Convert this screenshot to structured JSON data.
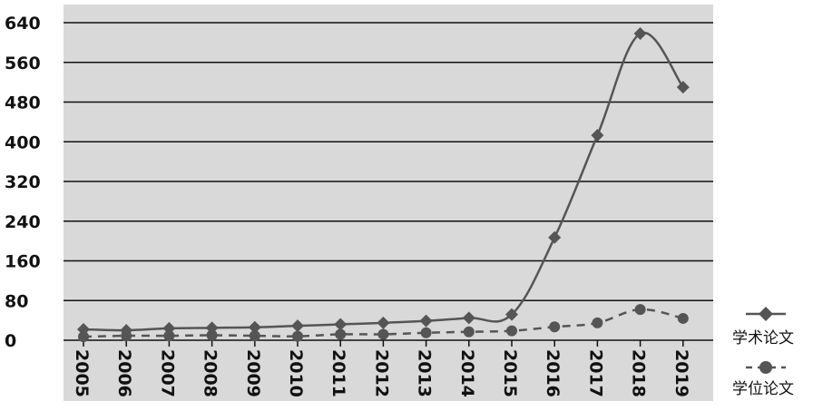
{
  "chart_data": {
    "type": "line",
    "title": "",
    "xlabel": "",
    "ylabel": "",
    "x": [
      "2005",
      "2006",
      "2007",
      "2008",
      "2009",
      "2010",
      "2011",
      "2012",
      "2013",
      "2014",
      "2015",
      "2016",
      "2017",
      "2018",
      "2019"
    ],
    "series": [
      {
        "name": "学术论文",
        "values": [
          22,
          20,
          24,
          25,
          26,
          29,
          32,
          35,
          39,
          45,
          52,
          207,
          413,
          618,
          510
        ],
        "color": "#555555",
        "line_style": "solid",
        "marker": "diamond"
      },
      {
        "name": "学位论文",
        "values": [
          7,
          9,
          9,
          10,
          9,
          8,
          12,
          12,
          15,
          17,
          19,
          27,
          35,
          62,
          44
        ],
        "color": "#555555",
        "line_style": "dashed",
        "marker": "circle"
      }
    ],
    "y_ticks": [
      0,
      80,
      160,
      240,
      320,
      400,
      480,
      560,
      640
    ],
    "ylim": [
      0,
      640
    ],
    "grid": true,
    "legend": "right",
    "background": "#d9d9d9"
  }
}
